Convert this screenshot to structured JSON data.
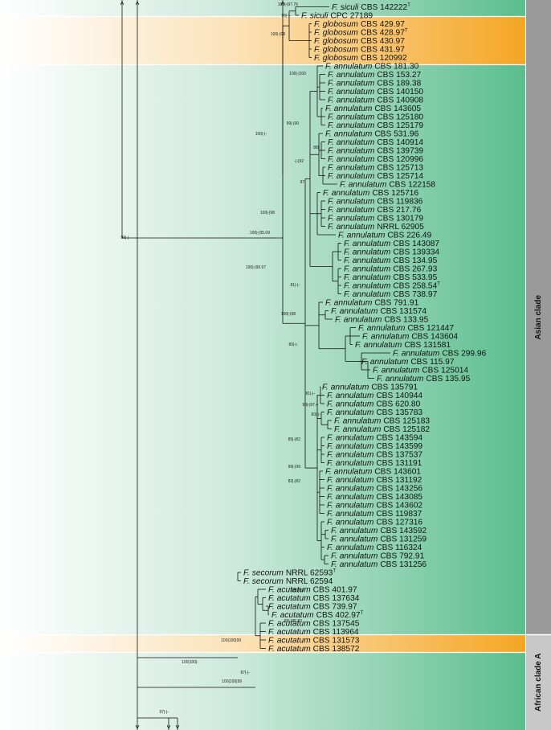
{
  "clades": [
    {
      "name": "Asian clade"
    },
    {
      "name": "African clade A"
    }
  ],
  "strains": [
    {
      "genus": "F.",
      "species": "siculi",
      "id": "CBS 142222",
      "type": true
    },
    {
      "genus": "F.",
      "species": "siculi",
      "id": "CPC 27189",
      "type": false
    },
    {
      "genus": "F.",
      "species": "globosum",
      "id": "CBS 429.97",
      "type": false
    },
    {
      "genus": "F.",
      "species": "globosum",
      "id": "CBS 428.97",
      "type": true
    },
    {
      "genus": "F.",
      "species": "globosum",
      "id": "CBS 430.97",
      "type": false
    },
    {
      "genus": "F.",
      "species": "globosum",
      "id": "CBS 431.97",
      "type": false
    },
    {
      "genus": "F.",
      "species": "globosum",
      "id": "CBS 120992",
      "type": false
    },
    {
      "genus": "F.",
      "species": "annulatum",
      "id": "CBS 181.30",
      "type": false
    },
    {
      "genus": "F.",
      "species": "annulatum",
      "id": "CBS 153.27",
      "type": false
    },
    {
      "genus": "F.",
      "species": "annulatum",
      "id": "CBS 189.38",
      "type": false
    },
    {
      "genus": "F.",
      "species": "annulatum",
      "id": "CBS 140150",
      "type": false
    },
    {
      "genus": "F.",
      "species": "annulatum",
      "id": "CBS 140908",
      "type": false
    },
    {
      "genus": "F.",
      "species": "annulatum",
      "id": "CBS 143605",
      "type": false
    },
    {
      "genus": "F.",
      "species": "annulatum",
      "id": "CBS 125180",
      "type": false
    },
    {
      "genus": "F.",
      "species": "annulatum",
      "id": "CBS 125179",
      "type": false
    },
    {
      "genus": "F.",
      "species": "annulatum",
      "id": "CBS 531.96",
      "type": false
    },
    {
      "genus": "F.",
      "species": "annulatum",
      "id": "CBS 140914",
      "type": false
    },
    {
      "genus": "F.",
      "species": "annulatum",
      "id": "CBS 139739",
      "type": false
    },
    {
      "genus": "F.",
      "species": "annulatum",
      "id": "CBS 120996",
      "type": false
    },
    {
      "genus": "F.",
      "species": "annulatum",
      "id": "CBS 125713",
      "type": false
    },
    {
      "genus": "F.",
      "species": "annulatum",
      "id": "CBS 125714",
      "type": false
    },
    {
      "genus": "F.",
      "species": "annulatum",
      "id": "CBS 122158",
      "type": false
    },
    {
      "genus": "F.",
      "species": "annulatum",
      "id": "CBS 125716",
      "type": false
    },
    {
      "genus": "F.",
      "species": "annulatum",
      "id": "CBS 119836",
      "type": false
    },
    {
      "genus": "F.",
      "species": "annulatum",
      "id": "CBS 217.76",
      "type": false
    },
    {
      "genus": "F.",
      "species": "annulatum",
      "id": "CBS 130179",
      "type": false
    },
    {
      "genus": "F.",
      "species": "annulatum",
      "id": "NRRL 62905",
      "type": false
    },
    {
      "genus": "F.",
      "species": "annulatum",
      "id": "CBS 226.49",
      "type": false
    },
    {
      "genus": "F.",
      "species": "annulatum",
      "id": "CBS 143087",
      "type": false
    },
    {
      "genus": "F.",
      "species": "annulatum",
      "id": "CBS 139334",
      "type": false
    },
    {
      "genus": "F.",
      "species": "annulatum",
      "id": "CBS 134.95",
      "type": false
    },
    {
      "genus": "F.",
      "species": "annulatum",
      "id": "CBS 267.93",
      "type": false
    },
    {
      "genus": "F.",
      "species": "annulatum",
      "id": "CBS 533.95",
      "type": false
    },
    {
      "genus": "F.",
      "species": "annulatum",
      "id": "CBS 258.54",
      "type": true
    },
    {
      "genus": "F.",
      "species": "annulatum",
      "id": "CBS 738.97",
      "type": false
    },
    {
      "genus": "F.",
      "species": "annulatum",
      "id": "CBS 791.91",
      "type": false
    },
    {
      "genus": "F.",
      "species": "annulatum",
      "id": "CBS 131574",
      "type": false
    },
    {
      "genus": "F.",
      "species": "annulatum",
      "id": "CBS 133.95",
      "type": false
    },
    {
      "genus": "F.",
      "species": "annulatum",
      "id": "CBS 121447",
      "type": false
    },
    {
      "genus": "F.",
      "species": "annulatum",
      "id": "CBS 143604",
      "type": false
    },
    {
      "genus": "F.",
      "species": "annulatum",
      "id": "CBS 131581",
      "type": false
    },
    {
      "genus": "F.",
      "species": "annulatum",
      "id": "CBS 299.96",
      "type": false
    },
    {
      "genus": "F.",
      "species": "annulatum",
      "id": "CBS 115.97",
      "type": false
    },
    {
      "genus": "F.",
      "species": "annulatum",
      "id": "CBS 125014",
      "type": false
    },
    {
      "genus": "F.",
      "species": "annulatum",
      "id": "CBS 135.95",
      "type": false
    },
    {
      "genus": "F.",
      "species": "annulatum",
      "id": "CBS 135791",
      "type": false
    },
    {
      "genus": "F.",
      "species": "annulatum",
      "id": "CBS 140944",
      "type": false
    },
    {
      "genus": "F.",
      "species": "annulatum",
      "id": "CBS 620.80",
      "type": false
    },
    {
      "genus": "F.",
      "species": "annulatum",
      "id": "CBS 135783",
      "type": false
    },
    {
      "genus": "F.",
      "species": "annulatum",
      "id": "CBS 125183",
      "type": false
    },
    {
      "genus": "F.",
      "species": "annulatum",
      "id": "CBS 125182",
      "type": false
    },
    {
      "genus": "F.",
      "species": "annulatum",
      "id": "CBS 143594",
      "type": false
    },
    {
      "genus": "F.",
      "species": "annulatum",
      "id": "CBS 143599",
      "type": false
    },
    {
      "genus": "F.",
      "species": "annulatum",
      "id": "CBS 137537",
      "type": false
    },
    {
      "genus": "F.",
      "species": "annulatum",
      "id": "CBS 131191",
      "type": false
    },
    {
      "genus": "F.",
      "species": "annulatum",
      "id": "CBS 143601",
      "type": false
    },
    {
      "genus": "F.",
      "species": "annulatum",
      "id": "CBS 131192",
      "type": false
    },
    {
      "genus": "F.",
      "species": "annulatum",
      "id": "CBS 143256",
      "type": false
    },
    {
      "genus": "F.",
      "species": "annulatum",
      "id": "CBS 143085",
      "type": false
    },
    {
      "genus": "F.",
      "species": "annulatum",
      "id": "CBS 143602",
      "type": false
    },
    {
      "genus": "F.",
      "species": "annulatum",
      "id": "CBS 119837",
      "type": false
    },
    {
      "genus": "F.",
      "species": "annulatum",
      "id": "CBS 127316",
      "type": false
    },
    {
      "genus": "F.",
      "species": "annulatum",
      "id": "CBS 143592",
      "type": false
    },
    {
      "genus": "F.",
      "species": "annulatum",
      "id": "CBS 131259",
      "type": false
    },
    {
      "genus": "F.",
      "species": "annulatum",
      "id": "CBS 116324",
      "type": false
    },
    {
      "genus": "F.",
      "species": "annulatum",
      "id": "CBS 792.91",
      "type": false
    },
    {
      "genus": "F.",
      "species": "annulatum",
      "id": "CBS 131256",
      "type": false
    },
    {
      "genus": "F.",
      "species": "secorum",
      "id": "NRRL 62593",
      "type": true
    },
    {
      "genus": "F.",
      "species": "secorum",
      "id": "NRRL 62594",
      "type": false
    },
    {
      "genus": "F.",
      "species": "acutatum",
      "id": "CBS 401.97",
      "type": false
    },
    {
      "genus": "F.",
      "species": "acutatum",
      "id": "CBS 137634",
      "type": false
    },
    {
      "genus": "F.",
      "species": "acutatum",
      "id": "CBS 739.97",
      "type": false
    },
    {
      "genus": "F.",
      "species": "acutatum",
      "id": "CBS 402.97",
      "type": true
    },
    {
      "genus": "F.",
      "species": "acutatum",
      "id": "CBS 137545",
      "type": false
    },
    {
      "genus": "F.",
      "species": "acutatum",
      "id": "CBS 113964",
      "type": false
    },
    {
      "genus": "F.",
      "species": "acutatum",
      "id": "CBS 131573",
      "type": false
    },
    {
      "genus": "F.",
      "species": "acutatum",
      "id": "CBS 138572",
      "type": false
    }
  ],
  "support_values": [
    "100|-|97.76",
    "99|-|-",
    "100|-|98",
    "100|-|100",
    "99|-|90",
    "100|-|-",
    "88|",
    "-|-|92",
    "97",
    "100|-|98",
    "100|-|95.09",
    "100|-|99.97",
    "81|-|-",
    "100|-|98",
    "80|-|-",
    "81|-|-",
    "98|-|97.4",
    "83|-|-",
    "85|-|82",
    "99|-|99",
    "82|-|82",
    "98|-|99",
    "99|-|95.83",
    "99|-|-",
    "100|100|99",
    "100|100|-",
    "87|-|-",
    "100|100|99",
    "97|-|-"
  ],
  "colors": {
    "teal": "#5ABE8E",
    "orange": "#F5A623",
    "asian_bar": "#9A9A9A",
    "african_bar": "#C8C8C8"
  }
}
